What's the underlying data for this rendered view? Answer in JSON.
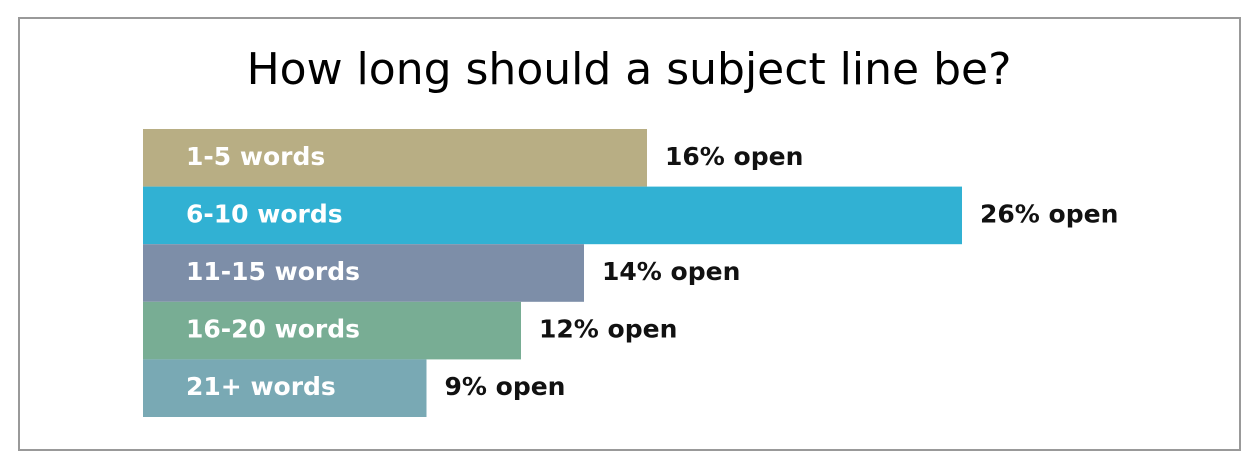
{
  "chart_data": {
    "type": "bar",
    "orientation": "horizontal",
    "title": "How long should a subject line be?",
    "categories": [
      "1-5 words",
      "6-10 words",
      "11-15 words",
      "16-20 words",
      "21+ words"
    ],
    "values": [
      16,
      26,
      14,
      12,
      9
    ],
    "value_labels": [
      "16% open",
      "26% open",
      "14% open",
      "12% open",
      "9% open"
    ],
    "colors": [
      "#b8ae84",
      "#31b1d3",
      "#7d8ea8",
      "#78ad94",
      "#79a9b4"
    ]
  }
}
